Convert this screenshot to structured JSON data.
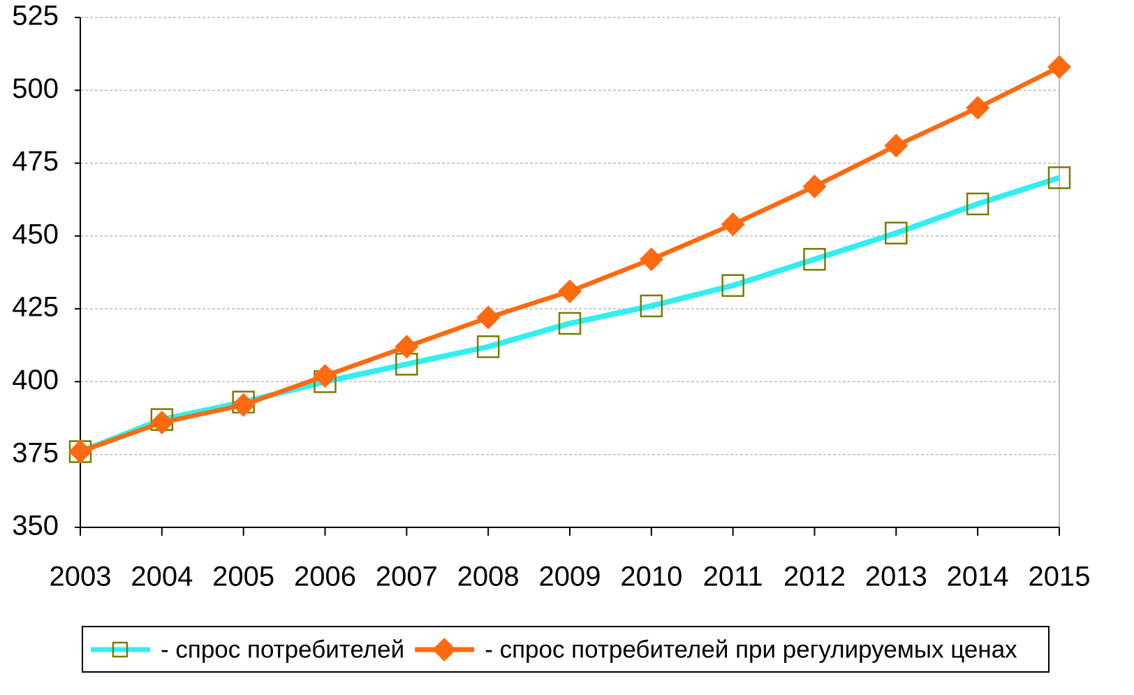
{
  "chart_data": {
    "type": "line",
    "categories": [
      "2003",
      "2004",
      "2005",
      "2006",
      "2007",
      "2008",
      "2009",
      "2010",
      "2011",
      "2012",
      "2013",
      "2014",
      "2015"
    ],
    "series": [
      {
        "name": "- спрос потребителей",
        "color": "#33eef0",
        "marker": "square",
        "marker_color": "#7a7a00",
        "values": [
          376,
          387,
          393,
          400,
          406,
          412,
          420,
          426,
          433,
          442,
          451,
          461,
          470
        ]
      },
      {
        "name": "- спрос потребителей при регулируемых ценах",
        "color": "#ff6a10",
        "marker": "diamond",
        "marker_color": "#ff6a10",
        "values": [
          376,
          386,
          392,
          402,
          412,
          422,
          431,
          442,
          454,
          467,
          481,
          494,
          508
        ]
      }
    ],
    "ylim": [
      350,
      525
    ],
    "yticks": [
      350,
      375,
      400,
      425,
      450,
      475,
      500,
      525
    ],
    "grid": true,
    "legend": "bottom"
  }
}
